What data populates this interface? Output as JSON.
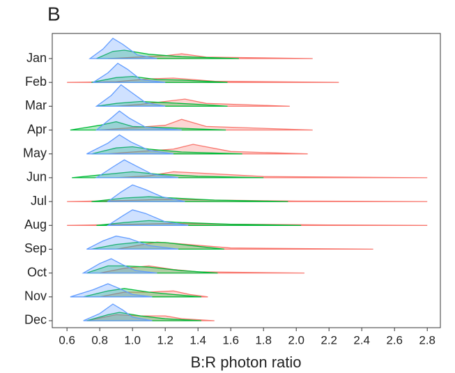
{
  "chart_data": {
    "type": "ridgeline",
    "title": "B",
    "x_label": "B:R photon ratio",
    "categories": [
      "Jan",
      "Feb",
      "Mar",
      "Apr",
      "May",
      "Jun",
      "Jul",
      "Aug",
      "Sep",
      "Oct",
      "Nov",
      "Dec"
    ],
    "xlim": [
      0.51,
      2.88
    ],
    "xticks": [
      {
        "value": 0.6,
        "label": "0.6"
      },
      {
        "value": 0.8,
        "label": "0.8"
      },
      {
        "value": 1.0,
        "label": "1.0"
      },
      {
        "value": 1.2,
        "label": "1.2"
      },
      {
        "value": 1.4,
        "label": "1.4"
      },
      {
        "value": 1.6,
        "label": "1.6"
      },
      {
        "value": 1.8,
        "label": "1.8"
      },
      {
        "value": 2.0,
        "label": "2.0"
      },
      {
        "value": 2.2,
        "label": "2.2"
      },
      {
        "value": 2.4,
        "label": "2.4"
      },
      {
        "value": 2.6,
        "label": "2.6"
      },
      {
        "value": 2.8,
        "label": "2.8"
      }
    ],
    "series": [
      {
        "color": "#F8766D",
        "ridges": [
          {
            "x": [
              0.85,
              1.0,
              1.2,
              1.3,
              1.45,
              2.1
            ],
            "values": [
              0,
              0.05,
              0.12,
              0.2,
              0.06,
              0
            ]
          },
          {
            "x": [
              0.6,
              0.9,
              1.1,
              1.25,
              1.5,
              2.26
            ],
            "values": [
              0,
              0.03,
              0.15,
              0.18,
              0.05,
              0
            ]
          },
          {
            "x": [
              0.9,
              1.05,
              1.2,
              1.32,
              1.45,
              1.96
            ],
            "values": [
              0,
              0.08,
              0.2,
              0.3,
              0.12,
              0
            ]
          },
          {
            "x": [
              0.8,
              1.0,
              1.2,
              1.3,
              1.45,
              2.1
            ],
            "values": [
              0,
              0.1,
              0.2,
              0.45,
              0.15,
              0
            ]
          },
          {
            "x": [
              0.85,
              1.0,
              1.25,
              1.37,
              1.6,
              2.07
            ],
            "values": [
              0,
              0.08,
              0.2,
              0.4,
              0.1,
              0
            ]
          },
          {
            "x": [
              0.9,
              1.1,
              1.25,
              1.4,
              1.8,
              2.8
            ],
            "values": [
              0,
              0.08,
              0.25,
              0.2,
              0.05,
              0
            ]
          },
          {
            "x": [
              0.6,
              1.0,
              1.2,
              1.5,
              2.0,
              2.8
            ],
            "values": [
              0,
              0.05,
              0.1,
              0.06,
              0.02,
              0
            ]
          },
          {
            "x": [
              0.6,
              1.0,
              1.2,
              1.6,
              2.2,
              2.8
            ],
            "values": [
              0,
              0.05,
              0.08,
              0.05,
              0.02,
              0
            ]
          },
          {
            "x": [
              0.9,
              1.0,
              1.15,
              1.3,
              1.6,
              2.47
            ],
            "values": [
              0,
              0.12,
              0.3,
              0.22,
              0.05,
              0
            ]
          },
          {
            "x": [
              0.8,
              0.95,
              1.1,
              1.25,
              1.4,
              2.05
            ],
            "values": [
              0,
              0.2,
              0.3,
              0.15,
              0.05,
              0
            ]
          },
          {
            "x": [
              0.8,
              0.95,
              1.1,
              1.25,
              1.35,
              1.46
            ],
            "values": [
              0,
              0.2,
              0.2,
              0.25,
              0.1,
              0
            ]
          },
          {
            "x": [
              0.72,
              0.9,
              1.05,
              1.2,
              1.3,
              1.5
            ],
            "values": [
              0,
              0.25,
              0.2,
              0.2,
              0.08,
              0
            ]
          }
        ]
      },
      {
        "color": "#00BA38",
        "ridges": [
          {
            "x": [
              0.78,
              0.88,
              0.95,
              1.1,
              1.3,
              1.65
            ],
            "values": [
              0,
              0.3,
              0.35,
              0.18,
              0.08,
              0
            ]
          },
          {
            "x": [
              0.75,
              0.9,
              1.0,
              1.15,
              1.3,
              1.58
            ],
            "values": [
              0,
              0.2,
              0.25,
              0.12,
              0.1,
              0
            ]
          },
          {
            "x": [
              0.78,
              0.9,
              1.05,
              1.2,
              1.4,
              1.58
            ],
            "values": [
              0,
              0.12,
              0.2,
              0.15,
              0.08,
              0
            ]
          },
          {
            "x": [
              0.62,
              0.8,
              0.9,
              1.0,
              1.2,
              1.57
            ],
            "values": [
              0,
              0.2,
              0.35,
              0.15,
              0.1,
              0
            ]
          },
          {
            "x": [
              0.75,
              0.9,
              1.0,
              1.1,
              1.3,
              1.67
            ],
            "values": [
              0,
              0.25,
              0.3,
              0.2,
              0.08,
              0
            ]
          },
          {
            "x": [
              0.63,
              0.85,
              1.0,
              1.15,
              1.4,
              1.8
            ],
            "values": [
              0,
              0.15,
              0.25,
              0.15,
              0.06,
              0
            ]
          },
          {
            "x": [
              0.75,
              0.95,
              1.1,
              1.25,
              1.5,
              1.95
            ],
            "values": [
              0,
              0.15,
              0.2,
              0.15,
              0.06,
              0
            ]
          },
          {
            "x": [
              0.78,
              0.95,
              1.1,
              1.3,
              1.6,
              2.03
            ],
            "values": [
              0,
              0.12,
              0.2,
              0.12,
              0.05,
              0
            ]
          },
          {
            "x": [
              0.75,
              0.9,
              1.05,
              1.2,
              1.4,
              1.56
            ],
            "values": [
              0,
              0.2,
              0.3,
              0.28,
              0.12,
              0
            ]
          },
          {
            "x": [
              0.72,
              0.85,
              0.95,
              1.1,
              1.3,
              1.52
            ],
            "values": [
              0,
              0.3,
              0.3,
              0.25,
              0.1,
              0
            ]
          },
          {
            "x": [
              0.7,
              0.85,
              0.95,
              1.1,
              1.25,
              1.42
            ],
            "values": [
              0,
              0.25,
              0.35,
              0.2,
              0.1,
              0
            ]
          },
          {
            "x": [
              0.72,
              0.85,
              0.92,
              1.05,
              1.2,
              1.42
            ],
            "values": [
              0,
              0.25,
              0.35,
              0.2,
              0.08,
              0
            ]
          }
        ]
      },
      {
        "color": "#619CFF",
        "ridges": [
          {
            "x": [
              0.74,
              0.82,
              0.88,
              0.94,
              1.03,
              1.15
            ],
            "values": [
              0,
              0.4,
              0.85,
              0.6,
              0.15,
              0
            ]
          },
          {
            "x": [
              0.76,
              0.85,
              0.91,
              0.97,
              1.05,
              1.2
            ],
            "values": [
              0,
              0.4,
              0.8,
              0.55,
              0.12,
              0
            ]
          },
          {
            "x": [
              0.78,
              0.87,
              0.93,
              0.99,
              1.08,
              1.2
            ],
            "values": [
              0,
              0.45,
              0.9,
              0.6,
              0.15,
              0
            ]
          },
          {
            "x": [
              0.78,
              0.87,
              0.92,
              0.98,
              1.08,
              1.3
            ],
            "values": [
              0,
              0.5,
              0.8,
              0.5,
              0.12,
              0
            ]
          },
          {
            "x": [
              0.72,
              0.85,
              0.92,
              0.99,
              1.1,
              1.25
            ],
            "values": [
              0,
              0.45,
              0.8,
              0.5,
              0.15,
              0
            ]
          },
          {
            "x": [
              0.78,
              0.88,
              0.95,
              1.02,
              1.12,
              1.28
            ],
            "values": [
              0,
              0.45,
              0.75,
              0.5,
              0.15,
              0
            ]
          },
          {
            "x": [
              0.85,
              0.93,
              1.0,
              1.08,
              1.18,
              1.32
            ],
            "values": [
              0,
              0.4,
              0.7,
              0.5,
              0.2,
              0
            ]
          },
          {
            "x": [
              0.85,
              0.94,
              1.0,
              1.08,
              1.2,
              1.34
            ],
            "values": [
              0,
              0.4,
              0.65,
              0.5,
              0.15,
              0
            ]
          },
          {
            "x": [
              0.72,
              0.82,
              0.9,
              0.98,
              1.1,
              1.28
            ],
            "values": [
              0,
              0.35,
              0.55,
              0.45,
              0.15,
              0
            ]
          },
          {
            "x": [
              0.7,
              0.8,
              0.87,
              0.94,
              1.02,
              1.15
            ],
            "values": [
              0,
              0.4,
              0.6,
              0.35,
              0.1,
              0
            ]
          },
          {
            "x": [
              0.62,
              0.76,
              0.85,
              0.92,
              1.0,
              1.12
            ],
            "values": [
              0,
              0.3,
              0.55,
              0.35,
              0.1,
              0
            ]
          },
          {
            "x": [
              0.7,
              0.8,
              0.88,
              0.94,
              1.0,
              1.12
            ],
            "values": [
              0,
              0.3,
              0.7,
              0.45,
              0.15,
              0
            ]
          }
        ]
      }
    ]
  }
}
